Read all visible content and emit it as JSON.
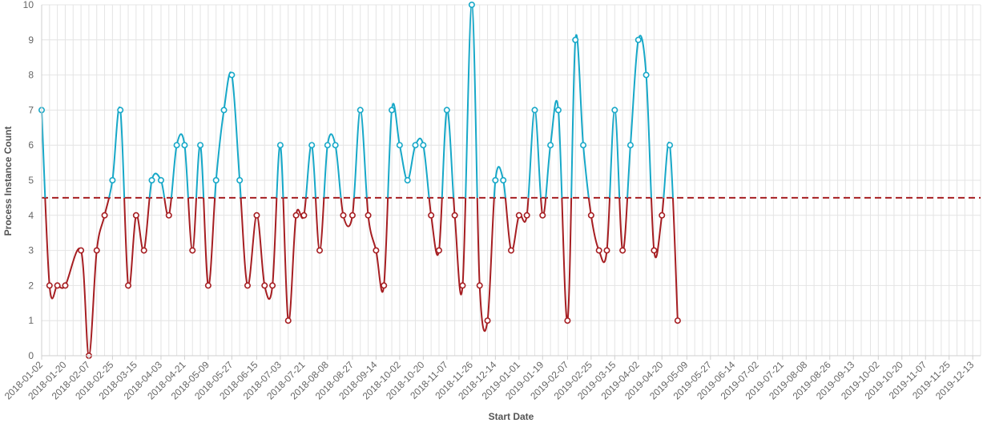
{
  "chart_data": {
    "type": "line",
    "xlabel": "Start Date",
    "ylabel": "Process Instance Count",
    "ylim": [
      0,
      10
    ],
    "yticks": [
      0,
      1,
      2,
      3,
      4,
      5,
      6,
      7,
      8,
      9,
      10
    ],
    "grid": true,
    "threshold": 4.5,
    "x": [
      "2018-01-02",
      "2018-01-08",
      "2018-01-14",
      "2018-01-20",
      "2018-01-26",
      "2018-02-01",
      "2018-02-07",
      "2018-02-13",
      "2018-02-19",
      "2018-02-25",
      "2018-03-03",
      "2018-03-09",
      "2018-03-15",
      "2018-03-21",
      "2018-03-27",
      "2018-04-03",
      "2018-04-09",
      "2018-04-15",
      "2018-04-21",
      "2018-04-27",
      "2018-05-03",
      "2018-05-09",
      "2018-05-15",
      "2018-05-21",
      "2018-05-27",
      "2018-06-02",
      "2018-06-08",
      "2018-06-15",
      "2018-06-21",
      "2018-06-27",
      "2018-07-03",
      "2018-07-09",
      "2018-07-15",
      "2018-07-21",
      "2018-07-27",
      "2018-08-02",
      "2018-08-08",
      "2018-08-14",
      "2018-08-20",
      "2018-08-27",
      "2018-09-02",
      "2018-09-08",
      "2018-09-14",
      "2018-09-20",
      "2018-09-26",
      "2018-10-02",
      "2018-10-08",
      "2018-10-14",
      "2018-10-20",
      "2018-10-26",
      "2018-11-01",
      "2018-11-07",
      "2018-11-13",
      "2018-11-19",
      "2018-11-26",
      "2018-12-02",
      "2018-12-08",
      "2018-12-14",
      "2018-12-20",
      "2018-12-26",
      "2019-01-01",
      "2019-01-07",
      "2019-01-13",
      "2019-01-19",
      "2019-01-25",
      "2019-01-31",
      "2019-02-07",
      "2019-02-13",
      "2019-02-19",
      "2019-02-25",
      "2019-03-03",
      "2019-03-09",
      "2019-03-15",
      "2019-03-21",
      "2019-03-27",
      "2019-04-02",
      "2019-04-08",
      "2019-04-14",
      "2019-04-20",
      "2019-04-26",
      "2019-05-02",
      "2019-05-09",
      "2019-05-15",
      "2019-05-21",
      "2019-05-27",
      "2019-06-02",
      "2019-06-08",
      "2019-06-14",
      "2019-06-20",
      "2019-06-26",
      "2019-07-02",
      "2019-07-08",
      "2019-07-14",
      "2019-07-21",
      "2019-07-27",
      "2019-08-02",
      "2019-08-08",
      "2019-08-14",
      "2019-08-20",
      "2019-08-26",
      "2019-09-01",
      "2019-09-07",
      "2019-09-13",
      "2019-09-19",
      "2019-09-26",
      "2019-10-02",
      "2019-10-08",
      "2019-10-14",
      "2019-10-20",
      "2019-10-26",
      "2019-11-01",
      "2019-11-07",
      "2019-11-13",
      "2019-11-19",
      "2019-11-25",
      "2019-12-01",
      "2019-12-07",
      "2019-12-13",
      "2019-12-19"
    ],
    "xtick_labels": [
      "2018-01-02",
      "2018-01-20",
      "2018-02-07",
      "2018-02-25",
      "2018-03-15",
      "2018-04-03",
      "2018-04-21",
      "2018-05-09",
      "2018-05-27",
      "2018-06-15",
      "2018-07-03",
      "2018-07-21",
      "2018-08-08",
      "2018-08-27",
      "2018-09-14",
      "2018-10-02",
      "2018-10-20",
      "2018-11-07",
      "2018-11-26",
      "2018-12-14",
      "2019-01-01",
      "2019-01-19",
      "2019-02-07",
      "2019-02-25",
      "2019-03-15",
      "2019-04-02",
      "2019-04-20",
      "2019-05-09",
      "2019-05-27",
      "2019-06-14",
      "2019-07-02",
      "2019-07-21",
      "2019-08-08",
      "2019-08-26",
      "2019-09-13",
      "2019-10-02",
      "2019-10-20",
      "2019-11-07",
      "2019-11-25",
      "2019-12-13"
    ],
    "points": [
      {
        "date": "2018-01-02",
        "value": 7
      },
      {
        "date": "2018-01-08",
        "value": 2
      },
      {
        "date": "2018-01-14",
        "value": 2
      },
      {
        "date": "2018-01-20",
        "value": 2
      },
      {
        "date": "2018-02-01",
        "value": 3
      },
      {
        "date": "2018-02-07",
        "value": 0
      },
      {
        "date": "2018-02-13",
        "value": 3
      },
      {
        "date": "2018-02-19",
        "value": 4
      },
      {
        "date": "2018-02-25",
        "value": 5
      },
      {
        "date": "2018-03-03",
        "value": 7
      },
      {
        "date": "2018-03-09",
        "value": 2
      },
      {
        "date": "2018-03-15",
        "value": 4
      },
      {
        "date": "2018-03-21",
        "value": 3
      },
      {
        "date": "2018-03-27",
        "value": 5
      },
      {
        "date": "2018-04-03",
        "value": 5
      },
      {
        "date": "2018-04-09",
        "value": 4
      },
      {
        "date": "2018-04-15",
        "value": 6
      },
      {
        "date": "2018-04-21",
        "value": 6
      },
      {
        "date": "2018-04-27",
        "value": 3
      },
      {
        "date": "2018-05-03",
        "value": 6
      },
      {
        "date": "2018-05-09",
        "value": 2
      },
      {
        "date": "2018-05-15",
        "value": 5
      },
      {
        "date": "2018-05-21",
        "value": 7
      },
      {
        "date": "2018-05-27",
        "value": 8
      },
      {
        "date": "2018-06-02",
        "value": 5
      },
      {
        "date": "2018-06-08",
        "value": 2
      },
      {
        "date": "2018-06-15",
        "value": 4
      },
      {
        "date": "2018-06-21",
        "value": 2
      },
      {
        "date": "2018-06-27",
        "value": 2
      },
      {
        "date": "2018-07-03",
        "value": 6
      },
      {
        "date": "2018-07-09",
        "value": 1
      },
      {
        "date": "2018-07-15",
        "value": 4
      },
      {
        "date": "2018-07-21",
        "value": 4
      },
      {
        "date": "2018-07-27",
        "value": 6
      },
      {
        "date": "2018-08-02",
        "value": 3
      },
      {
        "date": "2018-08-08",
        "value": 6
      },
      {
        "date": "2018-08-14",
        "value": 6
      },
      {
        "date": "2018-08-20",
        "value": 4
      },
      {
        "date": "2018-08-27",
        "value": 4
      },
      {
        "date": "2018-09-02",
        "value": 7
      },
      {
        "date": "2018-09-08",
        "value": 4
      },
      {
        "date": "2018-09-14",
        "value": 3
      },
      {
        "date": "2018-09-20",
        "value": 2
      },
      {
        "date": "2018-09-26",
        "value": 7
      },
      {
        "date": "2018-10-02",
        "value": 6
      },
      {
        "date": "2018-10-08",
        "value": 5
      },
      {
        "date": "2018-10-14",
        "value": 6
      },
      {
        "date": "2018-10-20",
        "value": 6
      },
      {
        "date": "2018-10-26",
        "value": 4
      },
      {
        "date": "2018-11-01",
        "value": 3
      },
      {
        "date": "2018-11-07",
        "value": 7
      },
      {
        "date": "2018-11-13",
        "value": 4
      },
      {
        "date": "2018-11-19",
        "value": 2
      },
      {
        "date": "2018-11-26",
        "value": 10
      },
      {
        "date": "2018-12-02",
        "value": 2
      },
      {
        "date": "2018-12-08",
        "value": 1
      },
      {
        "date": "2018-12-14",
        "value": 5
      },
      {
        "date": "2018-12-20",
        "value": 5
      },
      {
        "date": "2018-12-26",
        "value": 3
      },
      {
        "date": "2019-01-01",
        "value": 4
      },
      {
        "date": "2019-01-07",
        "value": 4
      },
      {
        "date": "2019-01-13",
        "value": 7
      },
      {
        "date": "2019-01-19",
        "value": 4
      },
      {
        "date": "2019-01-25",
        "value": 6
      },
      {
        "date": "2019-01-31",
        "value": 7
      },
      {
        "date": "2019-02-07",
        "value": 1
      },
      {
        "date": "2019-02-13",
        "value": 9
      },
      {
        "date": "2019-02-19",
        "value": 6
      },
      {
        "date": "2019-02-25",
        "value": 4
      },
      {
        "date": "2019-03-03",
        "value": 3
      },
      {
        "date": "2019-03-09",
        "value": 3
      },
      {
        "date": "2019-03-15",
        "value": 7
      },
      {
        "date": "2019-03-21",
        "value": 3
      },
      {
        "date": "2019-03-27",
        "value": 6
      },
      {
        "date": "2019-04-02",
        "value": 9
      },
      {
        "date": "2019-04-08",
        "value": 8
      },
      {
        "date": "2019-04-14",
        "value": 3
      },
      {
        "date": "2019-04-20",
        "value": 4
      },
      {
        "date": "2019-04-26",
        "value": 6
      },
      {
        "date": "2019-05-02",
        "value": 1
      }
    ]
  }
}
